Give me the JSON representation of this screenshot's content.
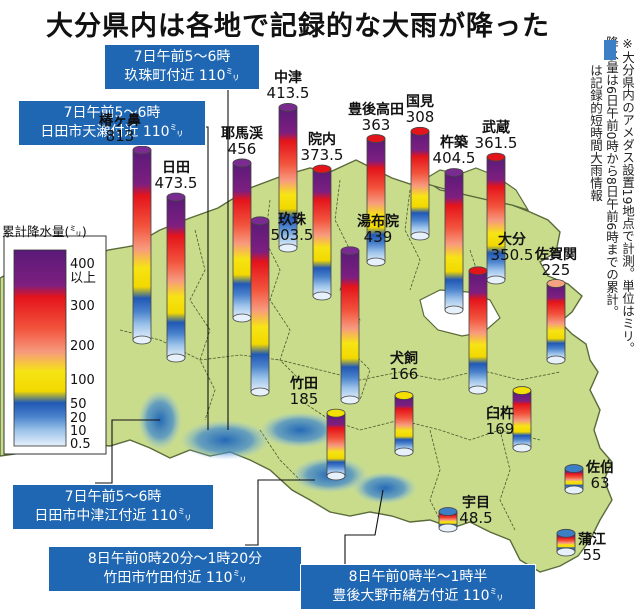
{
  "title": "大分県内は各地で記録的な大雨が降った",
  "notes": [
    "※大分県内のアメダス設置19地点で計測。単位はミリ。",
    "降水量は6日午前0時から8日午前6時までの累計。"
  ],
  "legend_swatch_note": "は記録的短時間大雨情報",
  "legend": {
    "title": "累計降水量(㍉)",
    "ticks": [
      "400",
      "以上",
      "300",
      "200",
      "100",
      "50",
      "20",
      "10",
      "0.5"
    ]
  },
  "callouts": [
    {
      "time": "7日午前5～6時",
      "place": "玖珠町付近 110㍉"
    },
    {
      "time": "7日午前5～6時",
      "place": "日田市天瀬付近 110㍉"
    },
    {
      "time": "7日午前5～6時",
      "place": "日田市中津江付近 110㍉"
    },
    {
      "time": "8日午前0時20分～1時20分",
      "place": "竹田市竹田付近 110㍉"
    },
    {
      "time": "8日午前0時半～1時半",
      "place": "豊後大野市緒方付近 110㍉"
    }
  ],
  "stations": [
    {
      "name": "椿ヶ鼻",
      "value": "813",
      "mm": 813
    },
    {
      "name": "日田",
      "value": "473.5",
      "mm": 473.5
    },
    {
      "name": "耶馬渓",
      "value": "456",
      "mm": 456
    },
    {
      "name": "中津",
      "value": "413.5",
      "mm": 413.5
    },
    {
      "name": "院内",
      "value": "373.5",
      "mm": 373.5
    },
    {
      "name": "豊後高田",
      "value": "363",
      "mm": 363
    },
    {
      "name": "国見",
      "value": "308",
      "mm": 308
    },
    {
      "name": "武蔵",
      "value": "361.5",
      "mm": 361.5
    },
    {
      "name": "杵築",
      "value": "404.5",
      "mm": 404.5
    },
    {
      "name": "玖珠",
      "value": "503.5",
      "mm": 503.5
    },
    {
      "name": "湯布院",
      "value": "439",
      "mm": 439
    },
    {
      "name": "大分",
      "value": "350.5",
      "mm": 350.5
    },
    {
      "name": "佐賀関",
      "value": "225",
      "mm": 225
    },
    {
      "name": "犬飼",
      "value": "166",
      "mm": 166
    },
    {
      "name": "竹田",
      "value": "185",
      "mm": 185
    },
    {
      "name": "臼杵",
      "value": "169",
      "mm": 169
    },
    {
      "name": "佐伯",
      "value": "63",
      "mm": 63
    },
    {
      "name": "宇目",
      "value": "48.5",
      "mm": 48.5
    },
    {
      "name": "蒲江",
      "value": "55",
      "mm": 55
    }
  ],
  "colors": {
    "callout_bg": "#1f67b3",
    "land": "#c9dc8c",
    "sea": "#ffffff",
    "highlight": "#3d7fc4"
  }
}
